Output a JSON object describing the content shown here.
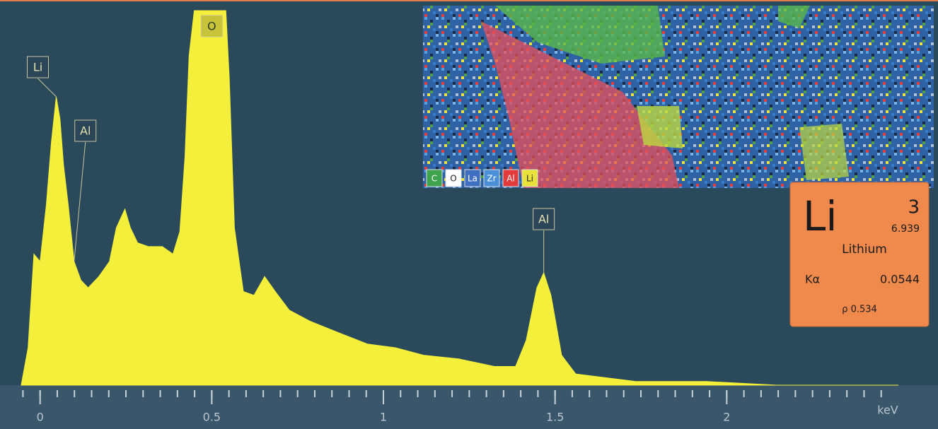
{
  "chart_data": {
    "type": "area",
    "xlabel": "keV",
    "color": "#f3ef3a",
    "x": [
      -0.055,
      -0.035,
      -0.018,
      0,
      0.018,
      0.033,
      0.047,
      0.058,
      0.068,
      0.082,
      0.099,
      0.119,
      0.14,
      0.171,
      0.202,
      0.222,
      0.247,
      0.263,
      0.284,
      0.315,
      0.356,
      0.387,
      0.407,
      0.422,
      0.434,
      0.449,
      0.541,
      0.551,
      0.566,
      0.592,
      0.623,
      0.654,
      0.685,
      0.726,
      0.788,
      0.87,
      0.953,
      1.035,
      1.117,
      1.22,
      1.323,
      1.385,
      1.416,
      1.447,
      1.467,
      1.488,
      1.519,
      1.56,
      1.735,
      1.94,
      2.146,
      2.5
    ],
    "values": [
      0,
      10,
      35,
      33,
      48,
      65,
      77,
      71,
      59,
      48,
      33,
      28,
      26,
      29,
      33,
      42,
      47,
      42,
      38,
      37,
      37,
      35,
      41,
      61,
      88,
      100,
      100,
      82,
      42,
      25,
      24,
      29,
      25,
      20,
      17,
      14,
      11,
      10,
      8,
      7,
      5,
      5,
      12,
      26,
      30,
      24,
      8,
      3,
      1,
      1,
      0,
      0
    ],
    "xlim": [
      -0.055,
      2.5
    ],
    "ylim": [
      0,
      100
    ],
    "xticks": [
      0,
      0.5,
      1,
      1.5,
      2
    ],
    "minor_xticks": [
      -0.05,
      0,
      0.05,
      0.1,
      0.15,
      0.2,
      0.25,
      0.3,
      0.35,
      0.4,
      0.45,
      0.5,
      0.55,
      0.6,
      0.65,
      0.7,
      0.75,
      0.8,
      0.85,
      0.9,
      0.95,
      1,
      1.05,
      1.1,
      1.15,
      1.2,
      1.25,
      1.3,
      1.35,
      1.4,
      1.45,
      1.5,
      1.55,
      1.6,
      1.65,
      1.7,
      1.75,
      1.8,
      1.85,
      1.9,
      1.95,
      2,
      2.05,
      2.1,
      2.15,
      2.2,
      2.25,
      2.3,
      2.35,
      2.4,
      2.45
    ],
    "annotations": [
      {
        "text": "Li",
        "x": 0.047
      },
      {
        "text": "Al",
        "x": 0.099
      },
      {
        "text": "O",
        "x": 0.5
      },
      {
        "text": "Al",
        "x": 1.467
      }
    ]
  },
  "element_map": {
    "legend": [
      {
        "name": "C",
        "color": "#3fa34d"
      },
      {
        "name": "O",
        "color": "#ffffff"
      },
      {
        "name": "La",
        "color": "#3f6fc0"
      },
      {
        "name": "Zr",
        "color": "#4a8fd8"
      },
      {
        "name": "Al",
        "color": "#e23b3b"
      },
      {
        "name": "Li",
        "color": "#e8e23a"
      }
    ]
  },
  "element_card": {
    "symbol": "Li",
    "number": "3",
    "mass": "6.939",
    "name": "Lithium",
    "line": "Kα",
    "energy": "0.0544",
    "density": "ρ 0.534"
  }
}
